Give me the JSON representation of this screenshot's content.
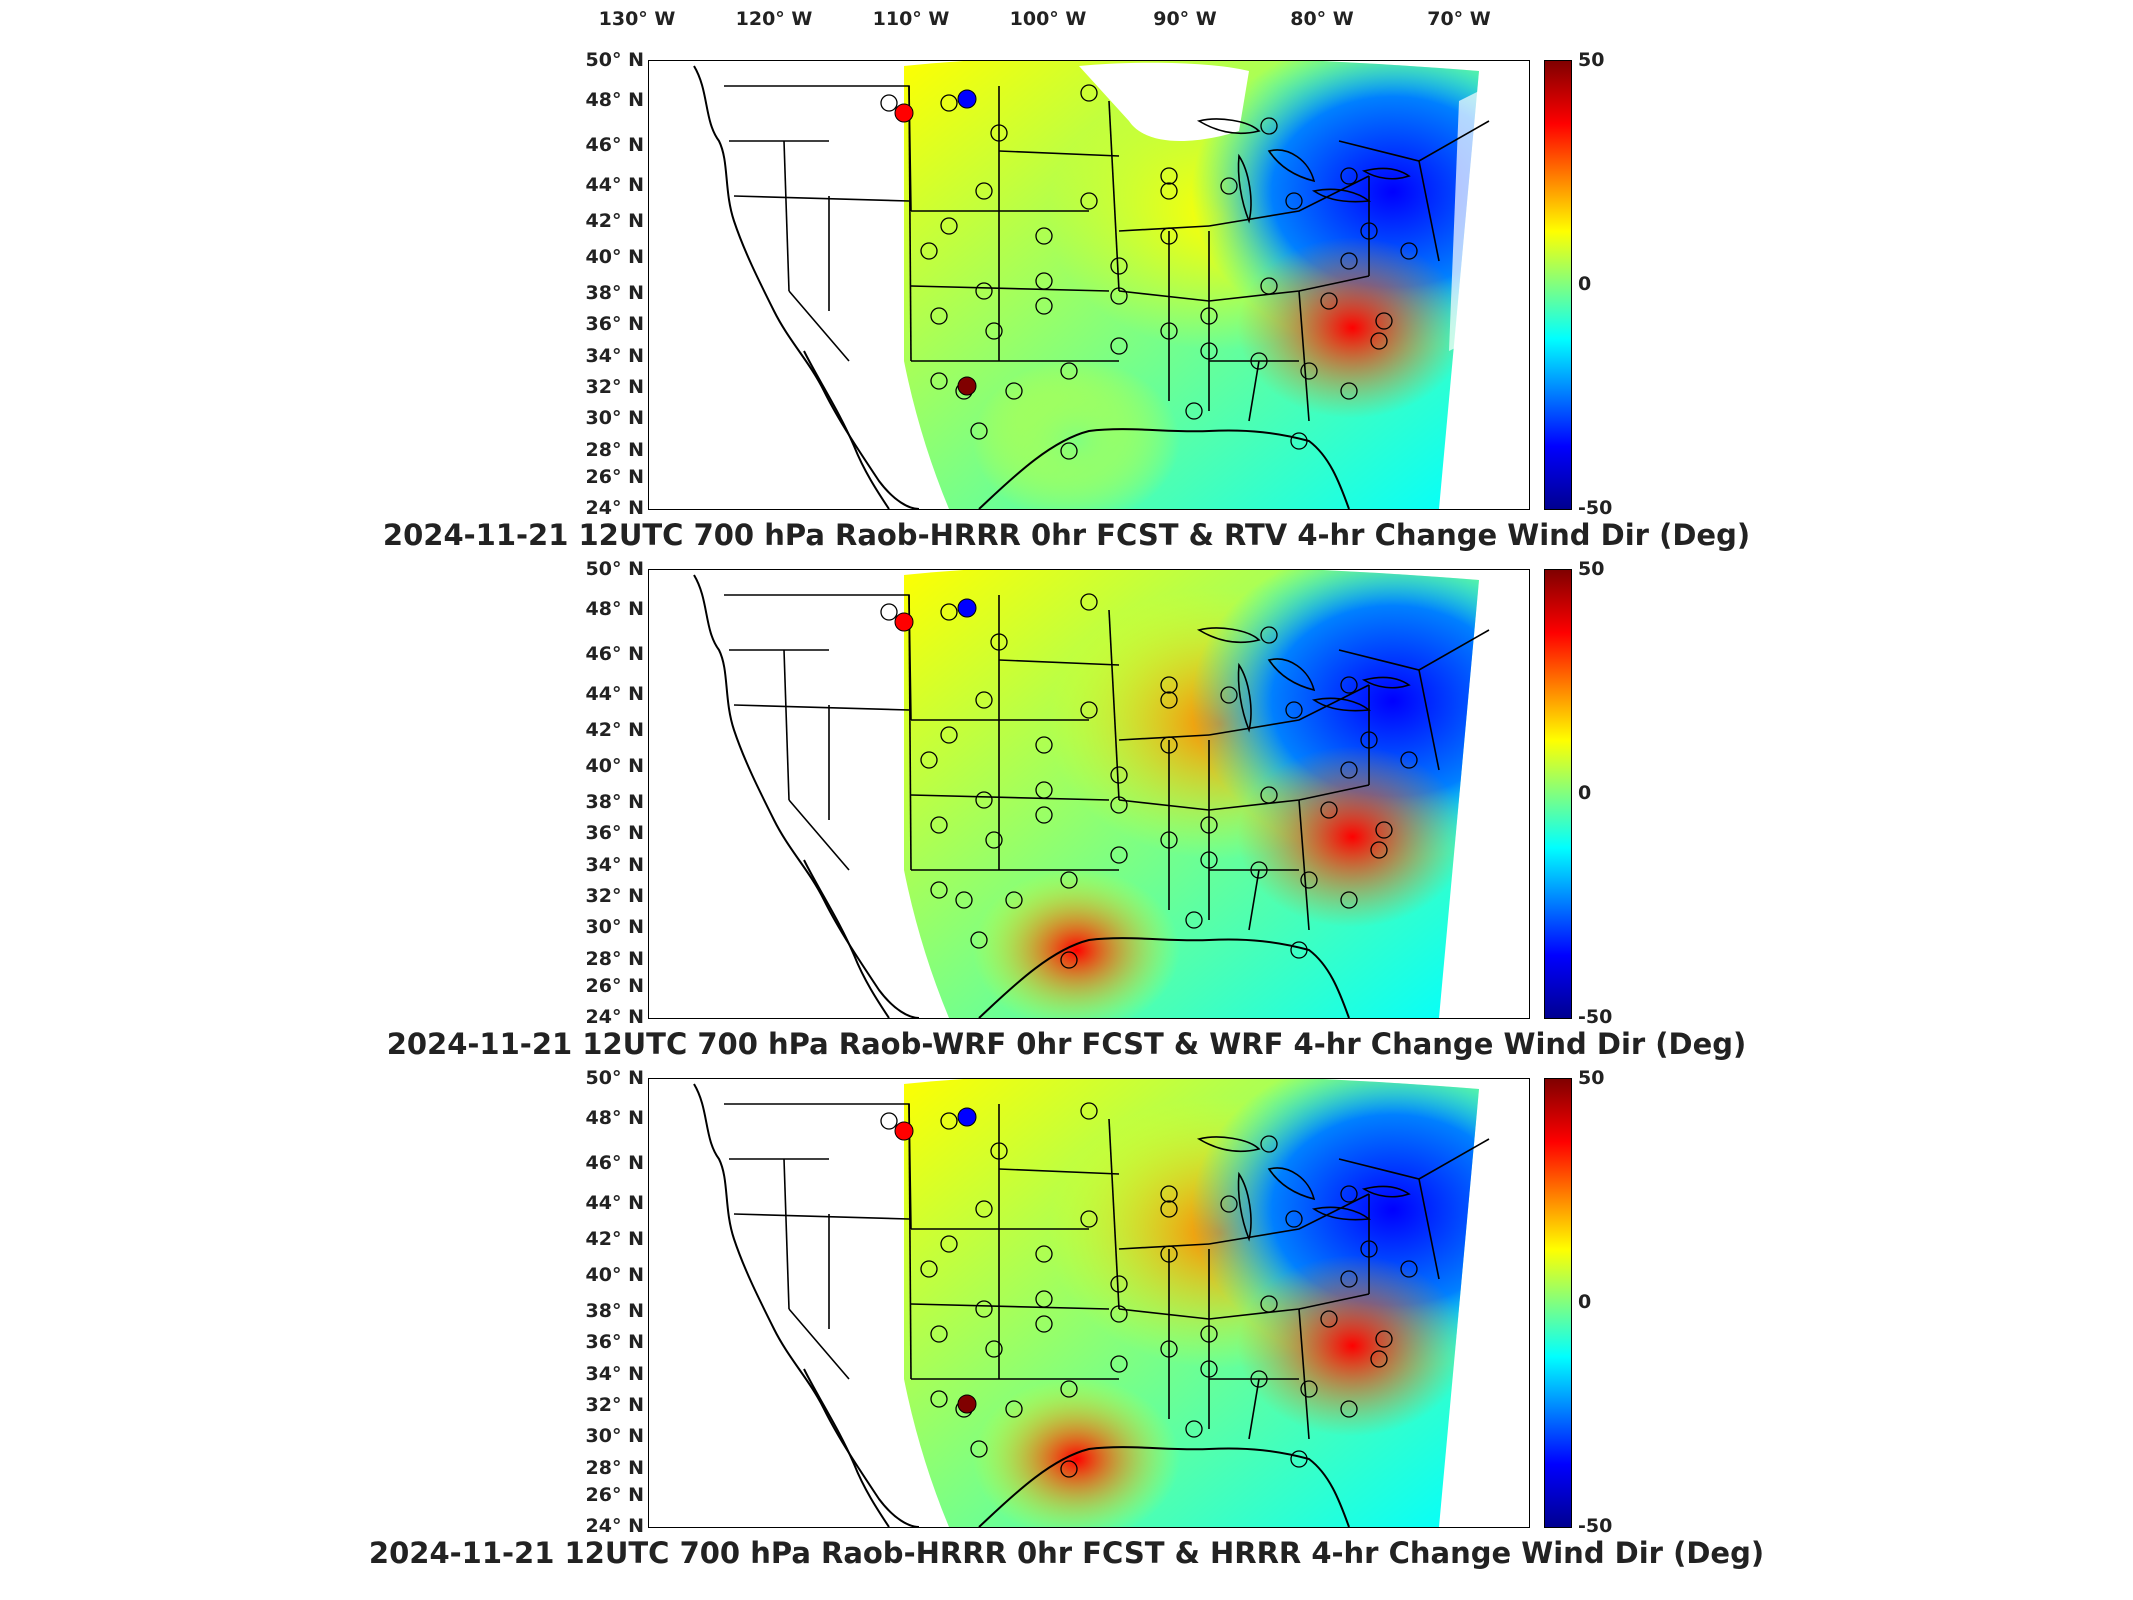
{
  "lon_axis": [
    "130° W",
    "120° W",
    "110° W",
    "100° W",
    "90° W",
    "80° W",
    "70° W"
  ],
  "lat_axis": [
    "50° N",
    "48° N",
    "46° N",
    "44° N",
    "42° N",
    "40° N",
    "38° N",
    "36° N",
    "34° N",
    "32° N",
    "30° N",
    "28° N",
    "26° N",
    "24° N"
  ],
  "colorbar": {
    "max": "50",
    "mid": "0",
    "min": "-50"
  },
  "panels": [
    {
      "caption": "2024-11-21 12UTC 700 hPa Raob-HRRR 0hr FCST & RTV 4-hr Change Wind Dir (Deg)"
    },
    {
      "caption": "2024-11-21 12UTC 700 hPa Raob-WRF 0hr FCST & WRF 4-hr Change Wind Dir (Deg)"
    },
    {
      "caption": "2024-11-21 12UTC 700 hPa Raob-HRRR 0hr FCST & HRRR 4-hr Change Wind Dir (Deg)"
    }
  ],
  "colors": {
    "max": "#800000",
    "high": "#ff0000",
    "mid_high": "#ff8000",
    "warm": "#ffff00",
    "zero": "#80ff80",
    "cool": "#00ffff",
    "mid_low": "#0080ff",
    "low": "#0000ff",
    "min": "#000090"
  }
}
